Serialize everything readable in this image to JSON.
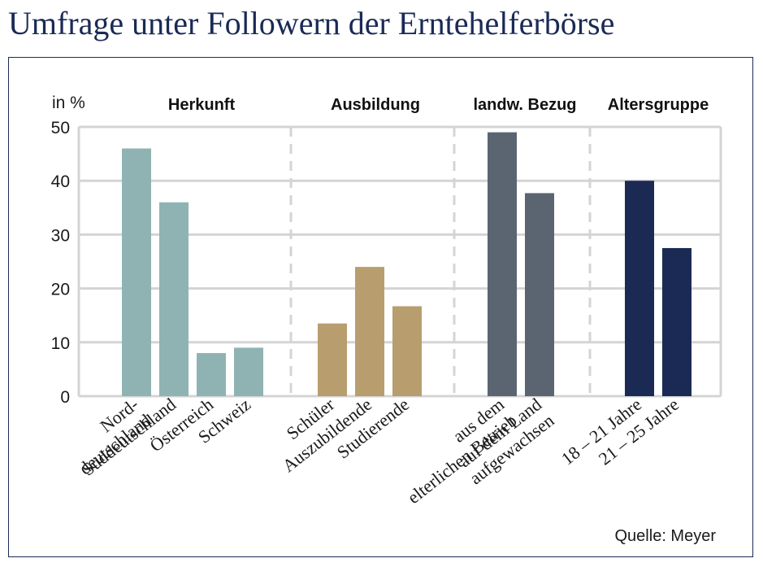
{
  "title": "Umfrage unter Followern der Erntehelferbörse",
  "source": "Quelle: Meyer",
  "colors": {
    "title": "#1b2a55",
    "frame": "#1b2a55",
    "grid": "#d4d4d4",
    "herkunft": "#8fb3b3",
    "ausbildung": "#b89e6e",
    "bezug": "#5b6572",
    "alter": "#1b2a55"
  },
  "chart_data": {
    "type": "bar",
    "title": "Umfrage unter Followern der Erntehelferbörse",
    "ylabel": "in %",
    "xlabel": "",
    "ylim": [
      0,
      50
    ],
    "yticks": [
      0,
      10,
      20,
      30,
      40,
      50
    ],
    "grid": true,
    "groups": [
      {
        "name": "Herkunft",
        "color_key": "herkunft",
        "categories": [
          {
            "lines": [
              "Nord-",
              "deutschland"
            ],
            "value": 46
          },
          {
            "lines": [
              "Süddeutschland"
            ],
            "value": 36
          },
          {
            "lines": [
              "Österreich"
            ],
            "value": 8
          },
          {
            "lines": [
              "Schweiz"
            ],
            "value": 9
          }
        ]
      },
      {
        "name": "Ausbildung",
        "color_key": "ausbildung",
        "categories": [
          {
            "lines": [
              "Schüler"
            ],
            "value": 13.5
          },
          {
            "lines": [
              "Auszubildende"
            ],
            "value": 24
          },
          {
            "lines": [
              "Studierende"
            ],
            "value": 16.7
          }
        ]
      },
      {
        "name": "landw. Bezug",
        "color_key": "bezug",
        "categories": [
          {
            "lines": [
              "aus dem",
              "elterlichen Betrieb"
            ],
            "value": 49
          },
          {
            "lines": [
              "auf dem Land",
              "aufgewachsen"
            ],
            "value": 37.7
          }
        ]
      },
      {
        "name": "Altersgruppe",
        "color_key": "alter",
        "categories": [
          {
            "lines": [
              "18 – 21 Jahre"
            ],
            "value": 40
          },
          {
            "lines": [
              "21 – 25 Jahre"
            ],
            "value": 27.5
          }
        ]
      }
    ]
  }
}
